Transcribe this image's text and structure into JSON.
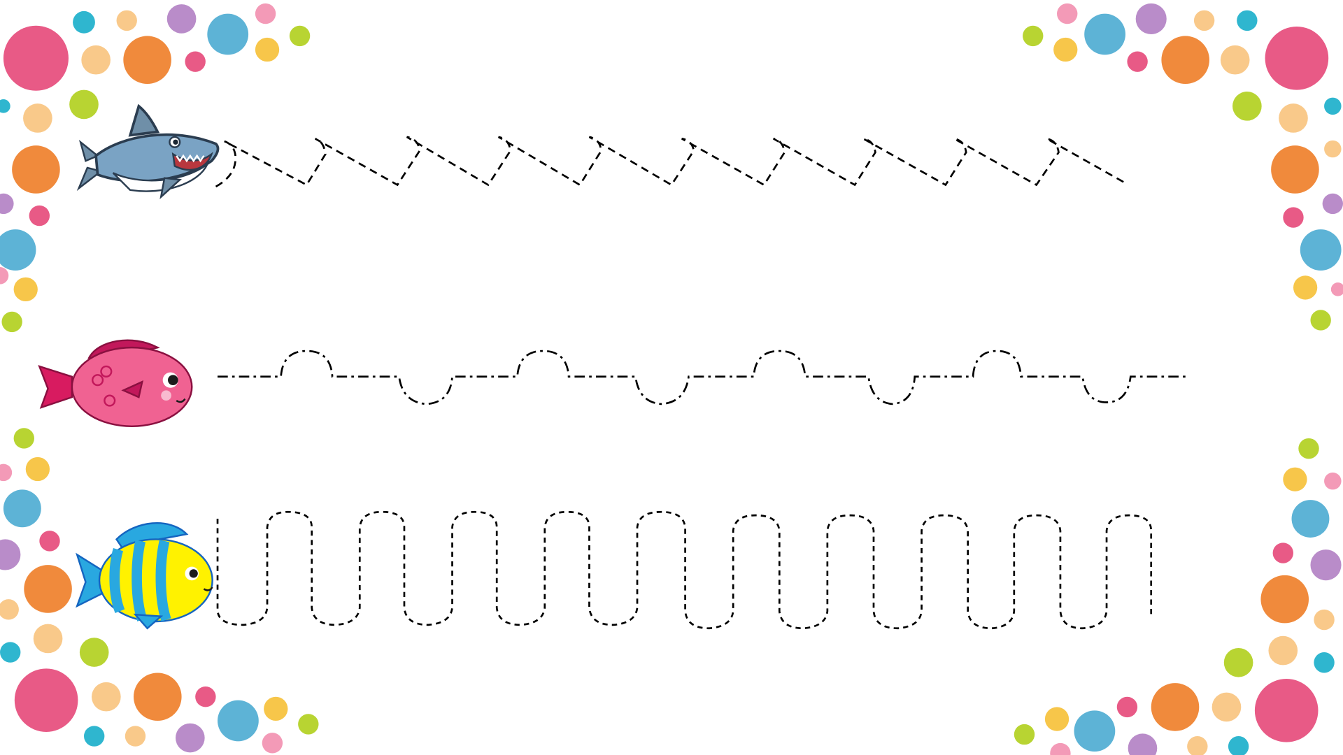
{
  "worksheet": {
    "background": "#ffffff",
    "line_color": "#000000",
    "dot_palette": {
      "pink": "#e85a86",
      "orange": "#f08a3c",
      "blue": "#5db3d6",
      "purple": "#b98cc9",
      "yellow": "#f7c64a",
      "peach": "#f9c98a",
      "lime": "#b8d432",
      "teal": "#2fb6cf",
      "light_pink": "#f39ab7"
    },
    "rows": [
      {
        "animal": "shark",
        "path_style": "shark-fin-waves"
      },
      {
        "animal": "pink-fish",
        "path_style": "bump-dip-line"
      },
      {
        "animal": "yellow-fish",
        "path_style": "meander-loops"
      }
    ]
  }
}
